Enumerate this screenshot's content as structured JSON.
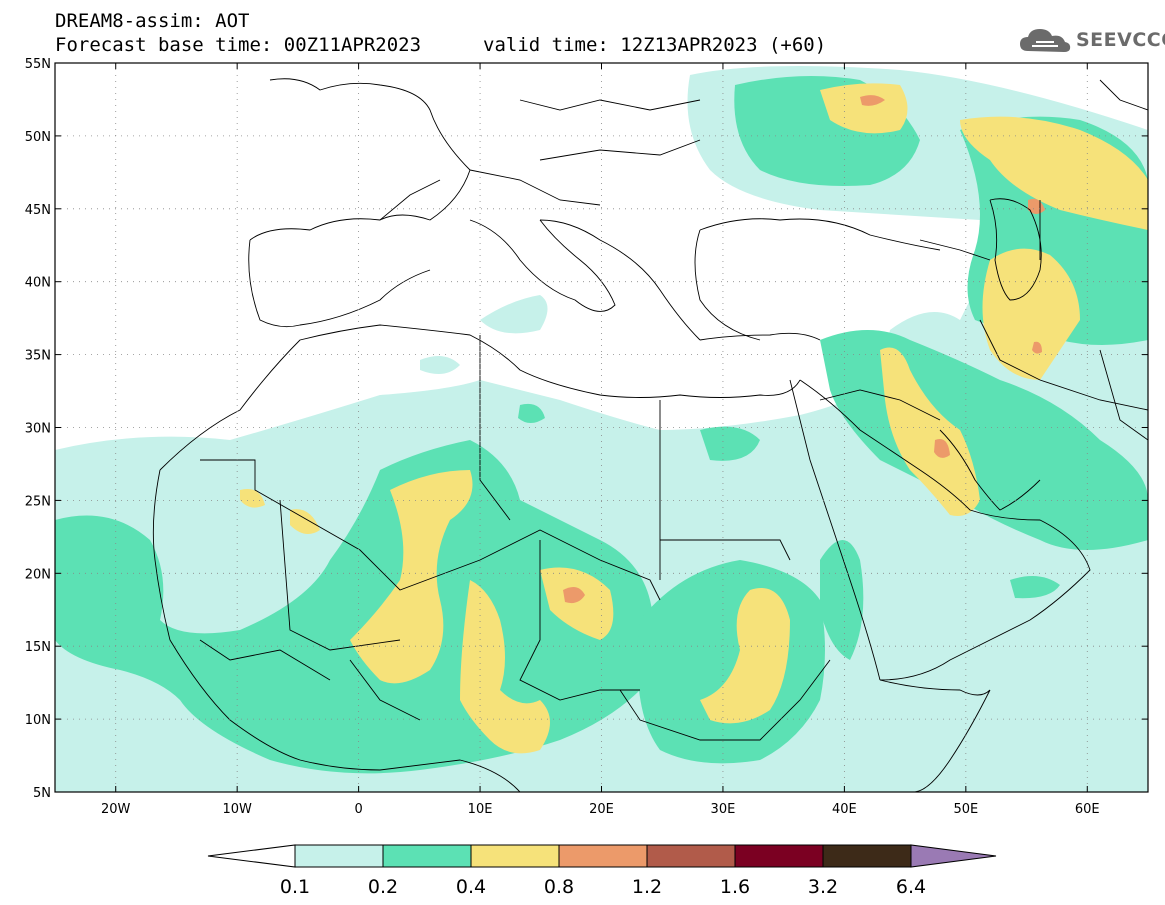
{
  "header": {
    "line1": "DREAM8-assim: AOT",
    "line2": "Forecast base time: 00Z11APR2023",
    "valid": "valid time: 12Z13APR2023 (+60)"
  },
  "logo": {
    "text": "SEEVCCC",
    "icon": "cloud-logo-icon",
    "color": "#6b6b6b"
  },
  "map": {
    "lon_range": [
      -25,
      65
    ],
    "lat_range": [
      5,
      55
    ],
    "lon_ticks": [
      "20W",
      "10W",
      "0",
      "10E",
      "20E",
      "30E",
      "40E",
      "50E",
      "60E"
    ],
    "lat_ticks": [
      "55N",
      "50N",
      "45N",
      "40N",
      "35N",
      "30N",
      "25N",
      "20N",
      "15N",
      "10N",
      "5N"
    ]
  },
  "colorbar": {
    "labels": [
      "0.1",
      "0.2",
      "0.4",
      "0.8",
      "1.2",
      "1.6",
      "3.2",
      "6.4"
    ],
    "colors": [
      "#c6f1ea",
      "#5ce1b4",
      "#f6e27a",
      "#ec9a6a",
      "#b15b4a",
      "#7b0022",
      "#3d2a18"
    ],
    "over_color": "#9a7ab4",
    "under_color": "#ffffff"
  }
}
